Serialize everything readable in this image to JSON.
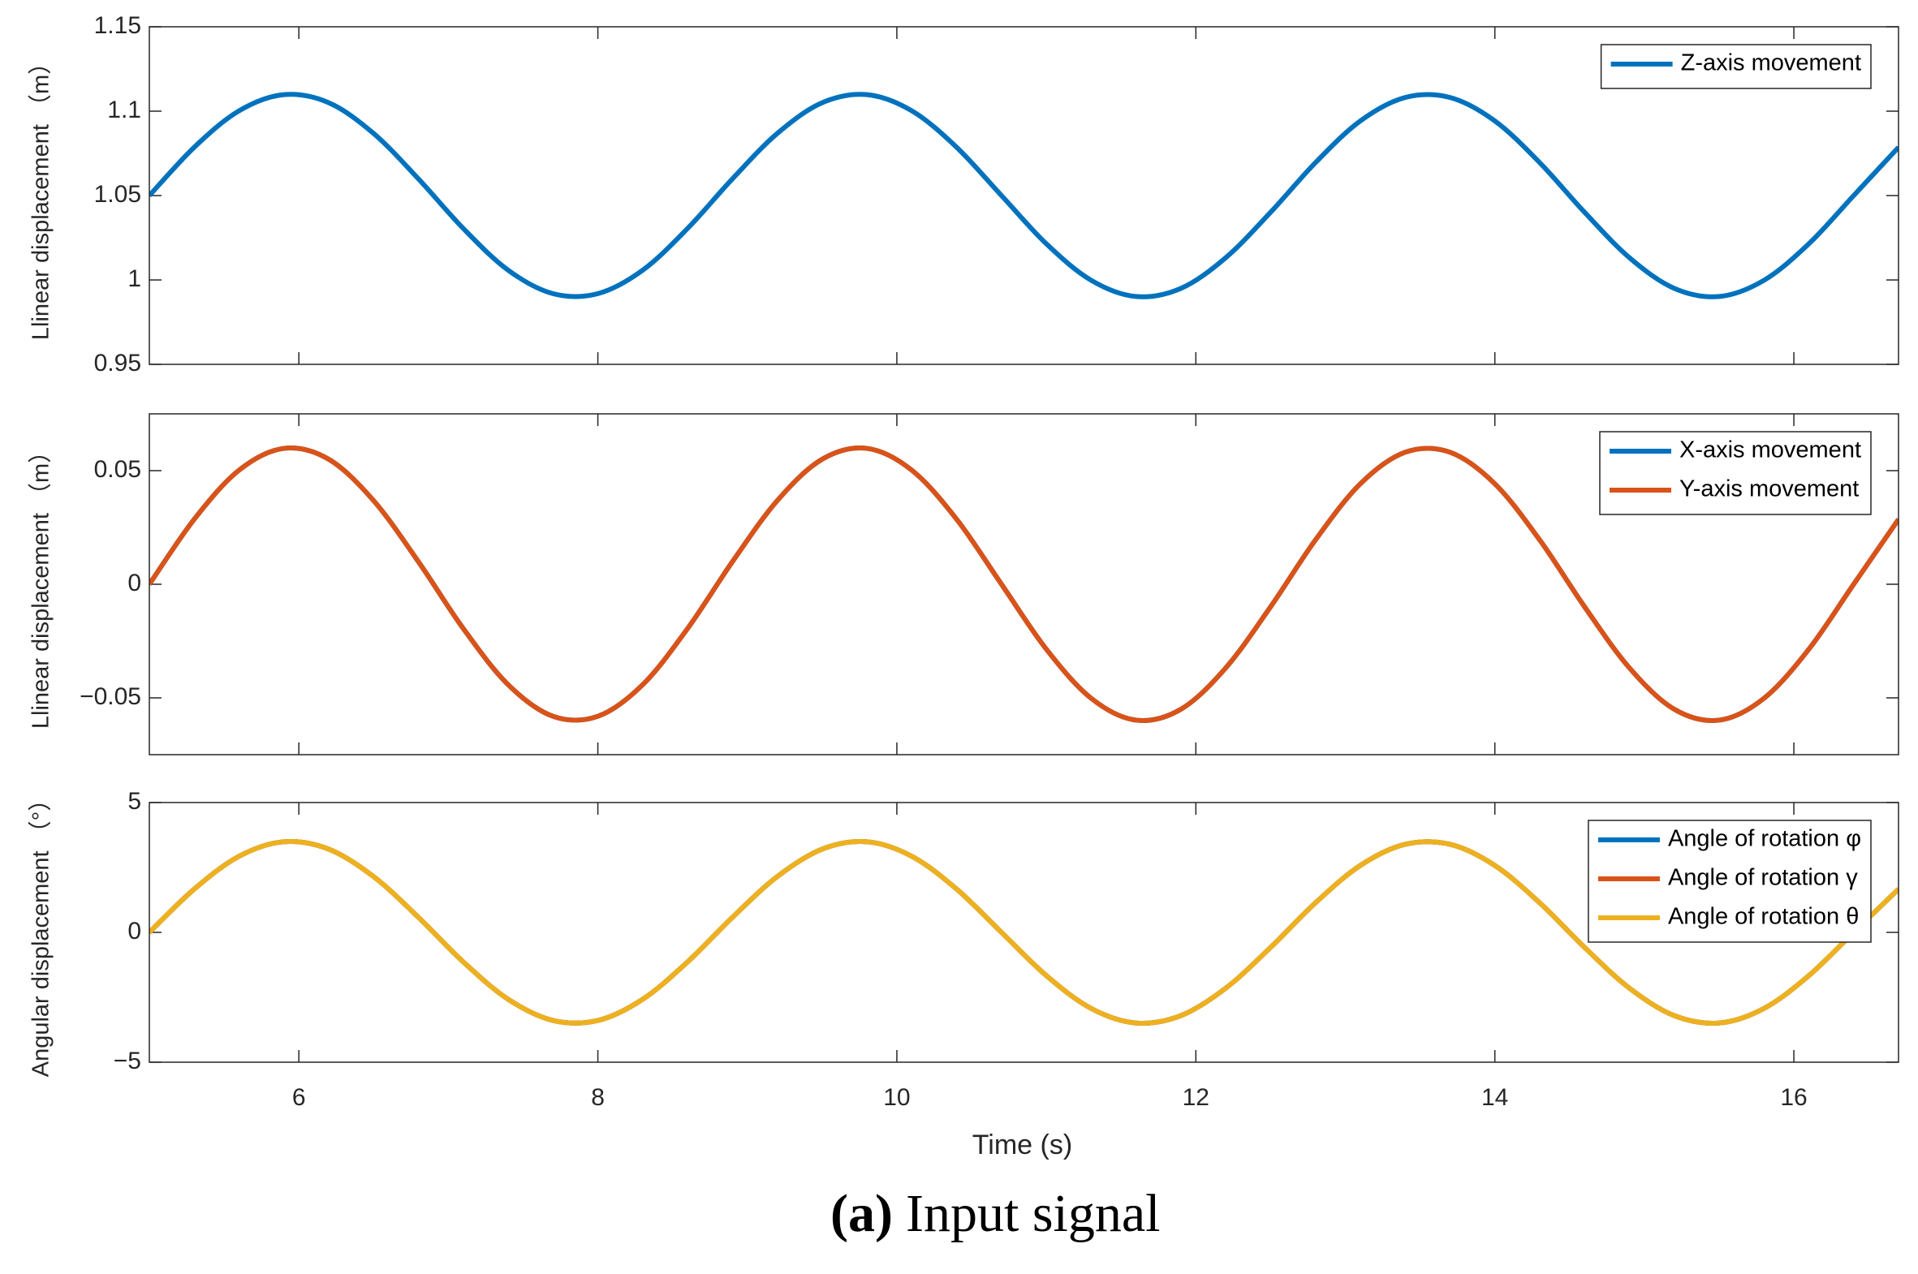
{
  "chart_data": [
    {
      "type": "line",
      "ylabel": "Llinear displacement （m）",
      "x": [
        5,
        5.3,
        5.6,
        5.9,
        6.2,
        6.5,
        6.8,
        7.1,
        7.4,
        7.7,
        8,
        8.3,
        8.6,
        8.9,
        9.2,
        9.5,
        9.8,
        10.1,
        10.4,
        10.7,
        11,
        11.3,
        11.6,
        11.9,
        12.2,
        12.5,
        12.8,
        13.1,
        13.4,
        13.7,
        14,
        14.3,
        14.6,
        14.9,
        15.2,
        15.5,
        15.8,
        16.1,
        16.4,
        16.7
      ],
      "series": [
        {
          "name": "Z-axis movement",
          "color": "#0072bd",
          "values": [
            1.05,
            1.0786,
            1.1002,
            1.1098,
            1.105,
            1.0868,
            1.0599,
            1.0305,
            1.0058,
            0.9919,
            0.9919,
            1.0058,
            1.0305,
            1.0599,
            1.0868,
            1.105,
            1.1098,
            1.1002,
            1.0786,
            1.05,
            1.0214,
            0.9998,
            0.9902,
            0.995,
            1.0132,
            1.0401,
            1.0695,
            1.0942,
            1.1081,
            1.1081,
            1.0942,
            1.0695,
            1.0401,
            1.0132,
            0.995,
            0.9902,
            0.9998,
            1.0214,
            1.05,
            1.0786
          ]
        }
      ],
      "xlim": [
        5,
        16.7
      ],
      "xticks": [
        6,
        8,
        10,
        12,
        14,
        16
      ],
      "xticklabels": false,
      "ylim": [
        0.95,
        1.15
      ],
      "yticks": [
        0.95,
        1,
        1.05,
        1.1,
        1.15
      ],
      "legend": "northeast"
    },
    {
      "type": "line",
      "ylabel": "Llinear displacement （m）",
      "x": [
        5,
        5.3,
        5.6,
        5.9,
        6.2,
        6.5,
        6.8,
        7.1,
        7.4,
        7.7,
        8,
        8.3,
        8.6,
        8.9,
        9.2,
        9.5,
        9.8,
        10.1,
        10.4,
        10.7,
        11,
        11.3,
        11.6,
        11.9,
        12.2,
        12.5,
        12.8,
        13.1,
        13.4,
        13.7,
        14,
        14.3,
        14.6,
        14.9,
        15.2,
        15.5,
        15.8,
        16.1,
        16.4,
        16.7
      ],
      "series": [
        {
          "name": "X-axis movement",
          "color": "#0072bd",
          "values": [
            0,
            0.0286,
            0.0502,
            0.0598,
            0.055,
            0.0368,
            0.0099,
            -0.0195,
            -0.0442,
            -0.0581,
            -0.0581,
            -0.0442,
            -0.0195,
            0.0099,
            0.0368,
            0.055,
            0.0598,
            0.0502,
            0.0286,
            0,
            -0.0286,
            -0.0502,
            -0.0598,
            -0.055,
            -0.0368,
            -0.0099,
            0.0195,
            0.0442,
            0.0581,
            0.0581,
            0.0442,
            0.0195,
            -0.0099,
            -0.0368,
            -0.055,
            -0.0598,
            -0.0502,
            -0.0286,
            0,
            0.0286
          ]
        },
        {
          "name": "Y-axis movement",
          "color": "#d95319",
          "values": [
            0,
            0.0286,
            0.0502,
            0.0598,
            0.055,
            0.0368,
            0.0099,
            -0.0195,
            -0.0442,
            -0.0581,
            -0.0581,
            -0.0442,
            -0.0195,
            0.0099,
            0.0368,
            0.055,
            0.0598,
            0.0502,
            0.0286,
            0,
            -0.0286,
            -0.0502,
            -0.0598,
            -0.055,
            -0.0368,
            -0.0099,
            0.0195,
            0.0442,
            0.0581,
            0.0581,
            0.0442,
            0.0195,
            -0.0099,
            -0.0368,
            -0.055,
            -0.0598,
            -0.0502,
            -0.0286,
            0,
            0.0286
          ]
        }
      ],
      "xlim": [
        5,
        16.7
      ],
      "xticks": [
        6,
        8,
        10,
        12,
        14,
        16
      ],
      "xticklabels": false,
      "ylim": [
        -0.075,
        0.075
      ],
      "yticks": [
        {
          "value": -0.05,
          "label": "−0.05"
        },
        0,
        0.05
      ],
      "legend": "northeast"
    },
    {
      "type": "line",
      "ylabel": "Angular displacement （°）",
      "xlabel": "Time (s)",
      "x": [
        5,
        5.3,
        5.6,
        5.9,
        6.2,
        6.5,
        6.8,
        7.1,
        7.4,
        7.7,
        8,
        8.3,
        8.6,
        8.9,
        9.2,
        9.5,
        9.8,
        10.1,
        10.4,
        10.7,
        11,
        11.3,
        11.6,
        11.9,
        12.2,
        12.5,
        12.8,
        13.1,
        13.4,
        13.7,
        14,
        14.3,
        14.6,
        14.9,
        15.2,
        15.5,
        15.8,
        16.1,
        16.4,
        16.7
      ],
      "series": [
        {
          "name": "Angle of rotation φ",
          "color": "#0072bd",
          "values": [
            0,
            1.666,
            2.93,
            3.49,
            3.206,
            2.149,
            0.578,
            -1.138,
            -2.576,
            -3.392,
            -3.392,
            -2.576,
            -1.138,
            0.578,
            2.149,
            3.206,
            3.49,
            2.93,
            1.666,
            0,
            -1.666,
            -2.93,
            -3.49,
            -3.206,
            -2.149,
            -0.578,
            1.138,
            2.576,
            3.392,
            3.392,
            2.576,
            1.138,
            -0.578,
            -2.149,
            -3.206,
            -3.49,
            -2.93,
            -1.666,
            0,
            1.666
          ]
        },
        {
          "name": "Angle of rotation γ",
          "color": "#d95319",
          "values": [
            0,
            1.666,
            2.93,
            3.49,
            3.206,
            2.149,
            0.578,
            -1.138,
            -2.576,
            -3.392,
            -3.392,
            -2.576,
            -1.138,
            0.578,
            2.149,
            3.206,
            3.49,
            2.93,
            1.666,
            0,
            -1.666,
            -2.93,
            -3.49,
            -3.206,
            -2.149,
            -0.578,
            1.138,
            2.576,
            3.392,
            3.392,
            2.576,
            1.138,
            -0.578,
            -2.149,
            -3.206,
            -3.49,
            -2.93,
            -1.666,
            0,
            1.666
          ]
        },
        {
          "name": "Angle of rotation θ",
          "color": "#edb120",
          "values": [
            0,
            1.666,
            2.93,
            3.49,
            3.206,
            2.149,
            0.578,
            -1.138,
            -2.576,
            -3.392,
            -3.392,
            -2.576,
            -1.138,
            0.578,
            2.149,
            3.206,
            3.49,
            2.93,
            1.666,
            0,
            -1.666,
            -2.93,
            -3.49,
            -3.206,
            -2.149,
            -0.578,
            1.138,
            2.576,
            3.392,
            3.392,
            2.576,
            1.138,
            -0.578,
            -2.149,
            -3.206,
            -3.49,
            -2.93,
            -1.666,
            0,
            1.666
          ]
        }
      ],
      "xlim": [
        5,
        16.7
      ],
      "xticks": [
        6,
        8,
        10,
        12,
        14,
        16
      ],
      "xticklabels": true,
      "ylim": [
        {
          "value": -5,
          "label": "−5"
        },
        5
      ],
      "yticks": [
        {
          "value": -5,
          "label": "−5"
        },
        0,
        5
      ],
      "legend": "northeast"
    }
  ],
  "caption": {
    "label": "(a)",
    "text": "Input signal"
  }
}
